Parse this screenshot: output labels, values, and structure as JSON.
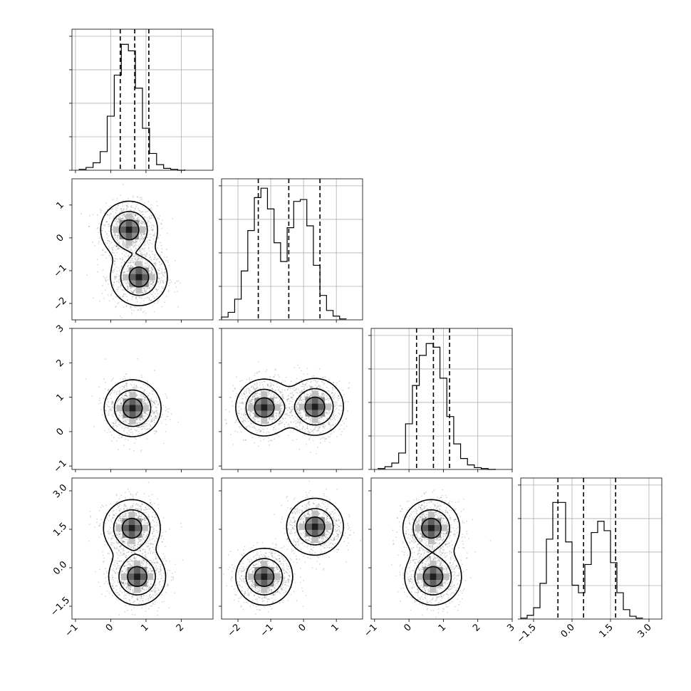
{
  "chart_data": {
    "type": "corner",
    "title": "",
    "grid": true,
    "parameters": [
      {
        "range": [
          -1.1,
          2.9
        ],
        "ticks": [
          -1,
          0,
          1,
          2
        ],
        "tick_labels": [
          "−1",
          "0",
          "1",
          "2"
        ],
        "quantiles": [
          0.27,
          0.68,
          1.08
        ],
        "hist_edges_start": -0.9,
        "hist_bin_width": 0.2,
        "hist_counts": [
          1,
          3,
          8,
          20,
          58,
          102,
          135,
          128,
          88,
          45,
          18,
          6,
          2,
          1,
          0
        ]
      },
      {
        "range": [
          -2.5,
          1.8
        ],
        "ticks": [
          -2,
          -1,
          0,
          1
        ],
        "tick_labels": [
          "−2",
          "−1",
          "0",
          "1"
        ],
        "quantiles": [
          -1.38,
          -0.45,
          0.5
        ],
        "hist_edges_start": -2.5,
        "hist_bin_width": 0.2,
        "hist_counts": [
          3,
          8,
          22,
          52,
          95,
          130,
          140,
          118,
          82,
          62,
          98,
          126,
          128,
          100,
          58,
          26,
          10,
          4,
          1
        ],
        "hist_ylim": [
          0,
          150
        ]
      },
      {
        "range": [
          -1.1,
          3.0
        ],
        "ticks": [
          -1,
          0,
          1,
          2,
          3
        ],
        "tick_labels": [
          "−1",
          "0",
          "1",
          "2",
          "3"
        ],
        "quantiles": [
          0.22,
          0.71,
          1.18
        ],
        "hist_edges_start": -0.9,
        "hist_bin_width": 0.2,
        "hist_counts": [
          1,
          3,
          7,
          18,
          50,
          92,
          125,
          138,
          134,
          100,
          58,
          28,
          12,
          5,
          2,
          1,
          0
        ]
      },
      {
        "range": [
          -2.0,
          3.5
        ],
        "ticks": [
          -1.5,
          0,
          1.5,
          3.0
        ],
        "tick_labels": [
          "−1.5",
          "0.0",
          "1.5",
          "3.0"
        ],
        "quantiles": [
          -0.55,
          0.45,
          1.7
        ],
        "hist_edges_start": -2.0,
        "hist_bin_width": 0.25,
        "hist_counts": [
          1,
          4,
          12,
          38,
          85,
          124,
          124,
          82,
          36,
          28,
          58,
          92,
          104,
          94,
          60,
          28,
          10,
          3,
          1
        ],
        "hist_ylim": [
          0,
          150
        ]
      }
    ],
    "pairs": [
      {
        "row": 1,
        "col": 0,
        "modes": [
          {
            "x": 0.52,
            "y": 0.25
          },
          {
            "x": 0.8,
            "y": -1.2
          }
        ]
      },
      {
        "row": 2,
        "col": 0,
        "modes": [
          {
            "x": 0.62,
            "y": 0.68
          }
        ]
      },
      {
        "row": 2,
        "col": 1,
        "modes": [
          {
            "x": -1.2,
            "y": 0.7
          },
          {
            "x": 0.35,
            "y": 0.72
          }
        ]
      },
      {
        "row": 3,
        "col": 0,
        "modes": [
          {
            "x": 0.6,
            "y": 1.55
          },
          {
            "x": 0.75,
            "y": -0.35
          }
        ]
      },
      {
        "row": 3,
        "col": 1,
        "modes": [
          {
            "x": -1.2,
            "y": -0.35
          },
          {
            "x": 0.35,
            "y": 1.6
          }
        ]
      },
      {
        "row": 3,
        "col": 2,
        "modes": [
          {
            "x": 0.65,
            "y": 1.55
          },
          {
            "x": 0.7,
            "y": -0.35
          }
        ]
      }
    ]
  }
}
